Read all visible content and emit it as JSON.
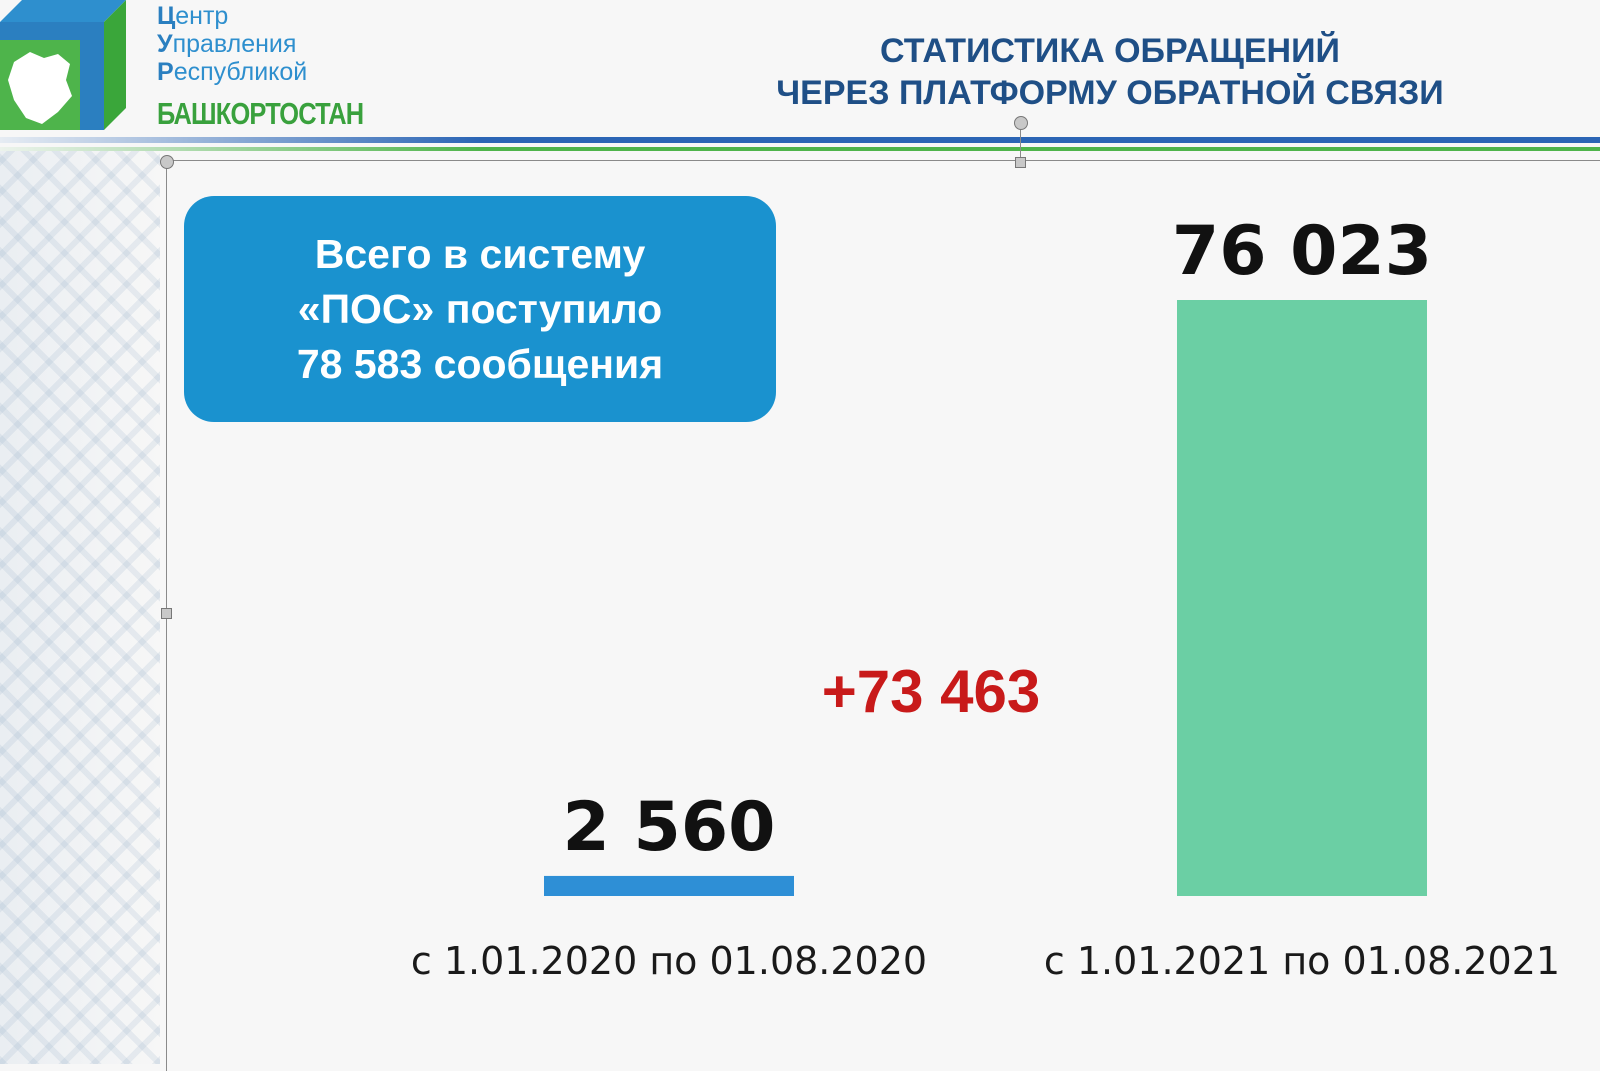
{
  "brand": {
    "lines": [
      {
        "initial": "Ц",
        "rest": "ентр"
      },
      {
        "initial": "У",
        "rest": "правления"
      },
      {
        "initial": "Р",
        "rest": "еспубликой"
      }
    ],
    "region": "БАШКОРТОСТАН",
    "colors": {
      "blue": "#2b7fc0",
      "green": "#39a13d"
    }
  },
  "header": {
    "title_line1": "СТАТИСТИКА ОБРАЩЕНИЙ",
    "title_line2": "ЧЕРЕЗ ПЛАТФОРМУ ОБРАТНОЙ СВЯЗИ"
  },
  "info_box": {
    "line1": "Всего в систему",
    "line2": "«ПОС» поступило",
    "line3": "78 583  сообщения"
  },
  "difference_label": "+73 463",
  "chart_data": {
    "type": "bar",
    "categories": [
      "с 1.01.2020 по 01.08.2020",
      "с 1.01.2021 по 01.08.2021"
    ],
    "values": [
      2560,
      76023
    ],
    "data_labels": [
      "2 560",
      "76 023"
    ],
    "colors": [
      "#2e8fd6",
      "#6bcfa4"
    ],
    "annotation": "+73 463",
    "annotation_color": "#c81a1a",
    "grid": false,
    "legend": "none"
  }
}
